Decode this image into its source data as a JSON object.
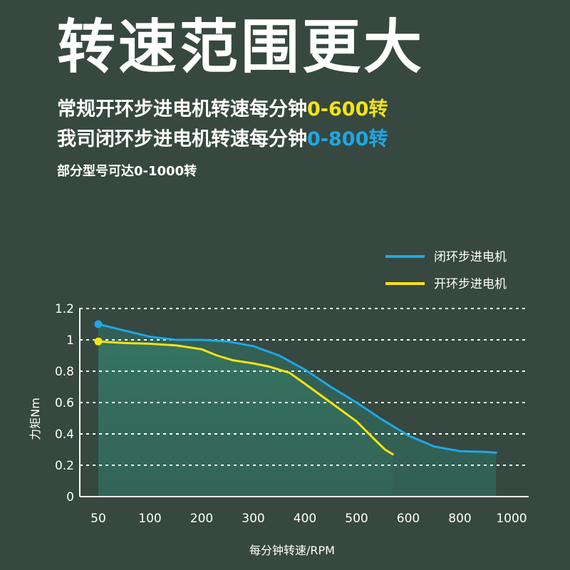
{
  "headline": "转速范围更大",
  "line1": {
    "prefix": "常规开环步进电机转速每分钟",
    "highlight": "0-600转"
  },
  "line2": {
    "prefix": "我司闭环步进电机转速每分钟",
    "highlight": "0-800转"
  },
  "note": "部分型号可达0-1000转",
  "colors": {
    "background": "#36483f",
    "closed_loop": "#1ea7e6",
    "open_loop": "#f3e316",
    "highlight_yellow": "#f3e316",
    "highlight_blue": "#1ea7e6"
  },
  "chart_data": {
    "type": "line",
    "title": "",
    "xlabel": "每分钟转速/RPM",
    "ylabel": "力矩Nm",
    "categories": [
      "50",
      "100",
      "200",
      "300",
      "400",
      "500",
      "600",
      "800",
      "1000"
    ],
    "yticks": [
      "0",
      "0.2",
      "0.4",
      "0.6",
      "0.8",
      "1",
      "1.2"
    ],
    "ylim": [
      0,
      1.2
    ],
    "grid": true,
    "legend_position": "top-right",
    "series": [
      {
        "name": "闭环步进电机",
        "color": "#1ea7e6",
        "points": [
          [
            0,
            1.1
          ],
          [
            0.5,
            1.06
          ],
          [
            1,
            1.02
          ],
          [
            1.5,
            1.0
          ],
          [
            2,
            1.0
          ],
          [
            2.5,
            0.99
          ],
          [
            3,
            0.96
          ],
          [
            3.5,
            0.9
          ],
          [
            4,
            0.81
          ],
          [
            4.5,
            0.7
          ],
          [
            5,
            0.6
          ],
          [
            5.5,
            0.49
          ],
          [
            6,
            0.39
          ],
          [
            6.5,
            0.32
          ],
          [
            7,
            0.29
          ],
          [
            7.5,
            0.285
          ],
          [
            7.7,
            0.28
          ]
        ]
      },
      {
        "name": "开环步进电机",
        "color": "#f3e316",
        "points": [
          [
            0,
            0.99
          ],
          [
            0.5,
            0.98
          ],
          [
            1,
            0.975
          ],
          [
            1.5,
            0.965
          ],
          [
            2,
            0.94
          ],
          [
            2.3,
            0.9
          ],
          [
            2.6,
            0.87
          ],
          [
            3,
            0.85
          ],
          [
            3.3,
            0.83
          ],
          [
            3.7,
            0.79
          ],
          [
            4,
            0.72
          ],
          [
            4.5,
            0.6
          ],
          [
            5,
            0.48
          ],
          [
            5.3,
            0.38
          ],
          [
            5.55,
            0.3
          ],
          [
            5.7,
            0.27
          ]
        ]
      }
    ]
  }
}
